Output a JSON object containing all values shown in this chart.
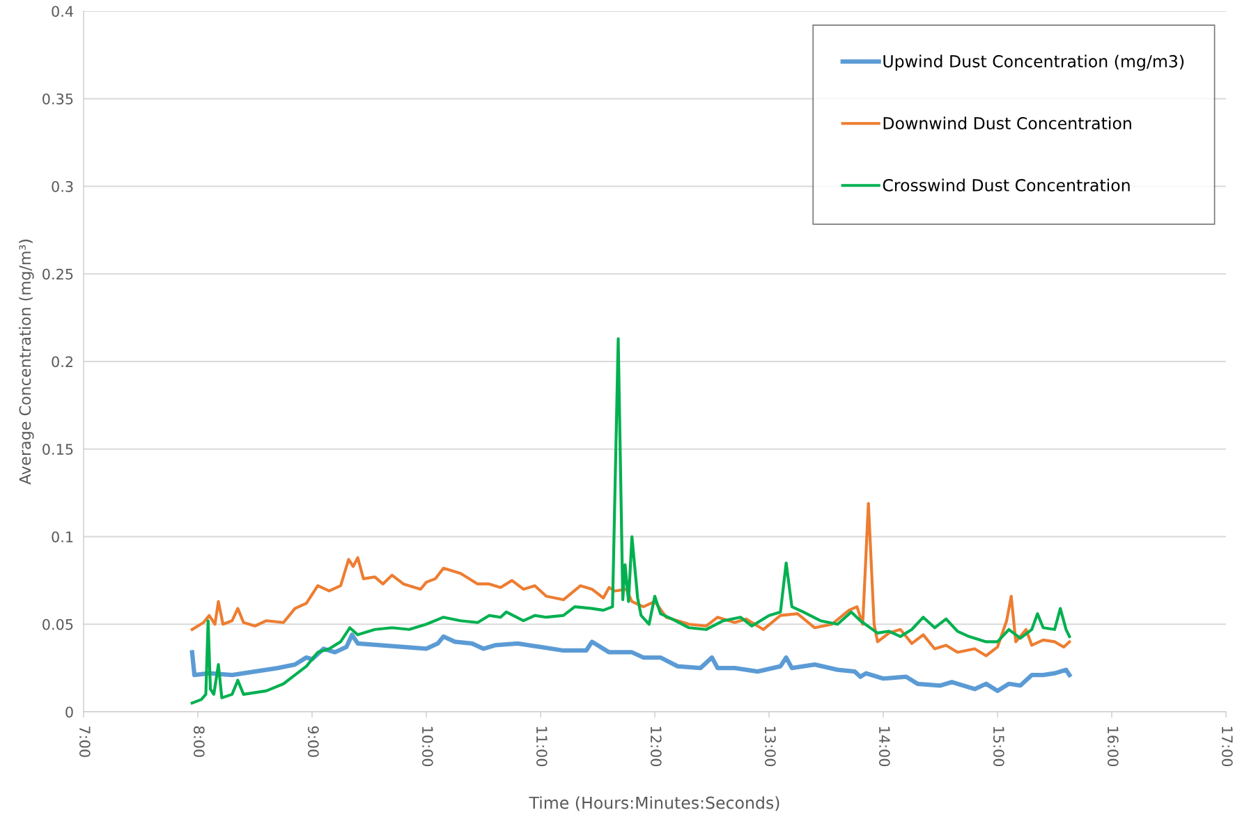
{
  "chart_data": {
    "type": "line",
    "xlabel": "Time (Hours:Minutes:Seconds)",
    "ylabel": "Average Concentration (mg/m³)",
    "xlim": [
      7,
      17
    ],
    "xticks": [
      {
        "value": 7,
        "label": "7:00"
      },
      {
        "value": 8,
        "label": "8:00"
      },
      {
        "value": 9,
        "label": "9:00"
      },
      {
        "value": 10,
        "label": "10:00"
      },
      {
        "value": 11,
        "label": "11:00"
      },
      {
        "value": 12,
        "label": "12:00"
      },
      {
        "value": 13,
        "label": "13:00"
      },
      {
        "value": 14,
        "label": "14:00"
      },
      {
        "value": 15,
        "label": "15:00"
      },
      {
        "value": 16,
        "label": "16:00"
      },
      {
        "value": 17,
        "label": "17:00"
      }
    ],
    "ylim": [
      0,
      0.4
    ],
    "yticks": [
      0,
      0.05,
      0.1,
      0.15,
      0.2,
      0.25,
      0.3,
      0.35,
      0.4
    ],
    "grid": "y",
    "legend": "top right",
    "marker": "none",
    "line_style": "solid",
    "series": [
      {
        "name": "Upwind Dust Concentration (mg/m3)",
        "color": "#5b9bd5",
        "x": [
          7.95,
          7.97,
          8.1,
          8.3,
          8.5,
          8.7,
          8.85,
          8.95,
          9.0,
          9.1,
          9.2,
          9.3,
          9.35,
          9.4,
          9.6,
          9.8,
          10.0,
          10.1,
          10.15,
          10.25,
          10.4,
          10.5,
          10.6,
          10.8,
          11.0,
          11.2,
          11.4,
          11.45,
          11.6,
          11.8,
          11.9,
          12.05,
          12.2,
          12.4,
          12.5,
          12.55,
          12.7,
          12.9,
          13.1,
          13.15,
          13.2,
          13.4,
          13.6,
          13.75,
          13.8,
          13.85,
          14.0,
          14.2,
          14.3,
          14.5,
          14.6,
          14.7,
          14.8,
          14.9,
          15.0,
          15.1,
          15.2,
          15.3,
          15.4,
          15.5,
          15.6,
          15.63
        ],
        "values": [
          0.034,
          0.021,
          0.022,
          0.021,
          0.023,
          0.025,
          0.027,
          0.031,
          0.03,
          0.036,
          0.034,
          0.037,
          0.044,
          0.039,
          0.038,
          0.037,
          0.036,
          0.039,
          0.043,
          0.04,
          0.039,
          0.036,
          0.038,
          0.039,
          0.037,
          0.035,
          0.035,
          0.04,
          0.034,
          0.034,
          0.031,
          0.031,
          0.026,
          0.025,
          0.031,
          0.025,
          0.025,
          0.023,
          0.026,
          0.031,
          0.025,
          0.027,
          0.024,
          0.023,
          0.02,
          0.022,
          0.019,
          0.02,
          0.016,
          0.015,
          0.017,
          0.015,
          0.013,
          0.016,
          0.012,
          0.016,
          0.015,
          0.021,
          0.021,
          0.022,
          0.024,
          0.021
        ]
      },
      {
        "name": "Downwind Dust Concentration",
        "color": "#ed7d31",
        "x": [
          7.95,
          8.05,
          8.1,
          8.15,
          8.18,
          8.22,
          8.3,
          8.35,
          8.4,
          8.5,
          8.6,
          8.75,
          8.85,
          8.95,
          9.05,
          9.15,
          9.25,
          9.32,
          9.36,
          9.4,
          9.45,
          9.55,
          9.62,
          9.7,
          9.8,
          9.95,
          10.0,
          10.08,
          10.15,
          10.3,
          10.45,
          10.55,
          10.65,
          10.75,
          10.85,
          10.95,
          11.05,
          11.2,
          11.35,
          11.45,
          11.55,
          11.6,
          11.65,
          11.75,
          11.8,
          11.9,
          12.0,
          12.1,
          12.3,
          12.45,
          12.55,
          12.7,
          12.8,
          12.95,
          13.1,
          13.25,
          13.4,
          13.55,
          13.7,
          13.77,
          13.82,
          13.87,
          13.92,
          13.95,
          14.05,
          14.15,
          14.25,
          14.35,
          14.45,
          14.55,
          14.65,
          14.8,
          14.9,
          15.0,
          15.08,
          15.12,
          15.16,
          15.25,
          15.3,
          15.4,
          15.5,
          15.58,
          15.63
        ],
        "values": [
          0.047,
          0.051,
          0.055,
          0.05,
          0.063,
          0.05,
          0.052,
          0.059,
          0.051,
          0.049,
          0.052,
          0.051,
          0.059,
          0.062,
          0.072,
          0.069,
          0.072,
          0.087,
          0.083,
          0.088,
          0.076,
          0.077,
          0.073,
          0.078,
          0.073,
          0.07,
          0.074,
          0.076,
          0.082,
          0.079,
          0.073,
          0.073,
          0.071,
          0.075,
          0.07,
          0.072,
          0.066,
          0.064,
          0.072,
          0.07,
          0.065,
          0.071,
          0.069,
          0.07,
          0.063,
          0.06,
          0.063,
          0.054,
          0.05,
          0.049,
          0.054,
          0.051,
          0.053,
          0.047,
          0.055,
          0.056,
          0.048,
          0.05,
          0.058,
          0.06,
          0.05,
          0.119,
          0.05,
          0.04,
          0.045,
          0.047,
          0.039,
          0.044,
          0.036,
          0.038,
          0.034,
          0.036,
          0.032,
          0.037,
          0.052,
          0.066,
          0.04,
          0.047,
          0.038,
          0.041,
          0.04,
          0.037,
          0.04
        ]
      },
      {
        "name": "Crosswind Dust Concentration",
        "color": "#00b050",
        "x": [
          7.95,
          8.03,
          8.07,
          8.09,
          8.11,
          8.14,
          8.18,
          8.21,
          8.3,
          8.35,
          8.4,
          8.5,
          8.6,
          8.75,
          8.85,
          8.95,
          9.05,
          9.15,
          9.25,
          9.33,
          9.4,
          9.55,
          9.7,
          9.85,
          10.0,
          10.15,
          10.3,
          10.45,
          10.55,
          10.65,
          10.7,
          10.85,
          10.95,
          11.05,
          11.2,
          11.3,
          11.45,
          11.55,
          11.63,
          11.68,
          11.72,
          11.74,
          11.77,
          11.8,
          11.85,
          11.88,
          11.95,
          12.0,
          12.05,
          12.15,
          12.3,
          12.45,
          12.6,
          12.75,
          12.85,
          13.0,
          13.1,
          13.15,
          13.2,
          13.3,
          13.45,
          13.6,
          13.72,
          13.8,
          13.95,
          14.05,
          14.15,
          14.25,
          14.35,
          14.45,
          14.55,
          14.65,
          14.75,
          14.9,
          15.0,
          15.1,
          15.2,
          15.3,
          15.35,
          15.4,
          15.5,
          15.55,
          15.6,
          15.63
        ],
        "values": [
          0.005,
          0.007,
          0.01,
          0.052,
          0.013,
          0.01,
          0.027,
          0.008,
          0.01,
          0.018,
          0.01,
          0.011,
          0.012,
          0.016,
          0.021,
          0.026,
          0.034,
          0.036,
          0.04,
          0.048,
          0.044,
          0.047,
          0.048,
          0.047,
          0.05,
          0.054,
          0.052,
          0.051,
          0.055,
          0.054,
          0.057,
          0.052,
          0.055,
          0.054,
          0.055,
          0.06,
          0.059,
          0.058,
          0.06,
          0.213,
          0.064,
          0.084,
          0.063,
          0.1,
          0.065,
          0.055,
          0.05,
          0.066,
          0.056,
          0.053,
          0.048,
          0.047,
          0.052,
          0.054,
          0.049,
          0.055,
          0.057,
          0.085,
          0.06,
          0.057,
          0.052,
          0.05,
          0.057,
          0.052,
          0.045,
          0.046,
          0.043,
          0.047,
          0.054,
          0.048,
          0.053,
          0.046,
          0.043,
          0.04,
          0.04,
          0.047,
          0.042,
          0.047,
          0.056,
          0.048,
          0.047,
          0.059,
          0.047,
          0.043
        ]
      }
    ]
  }
}
